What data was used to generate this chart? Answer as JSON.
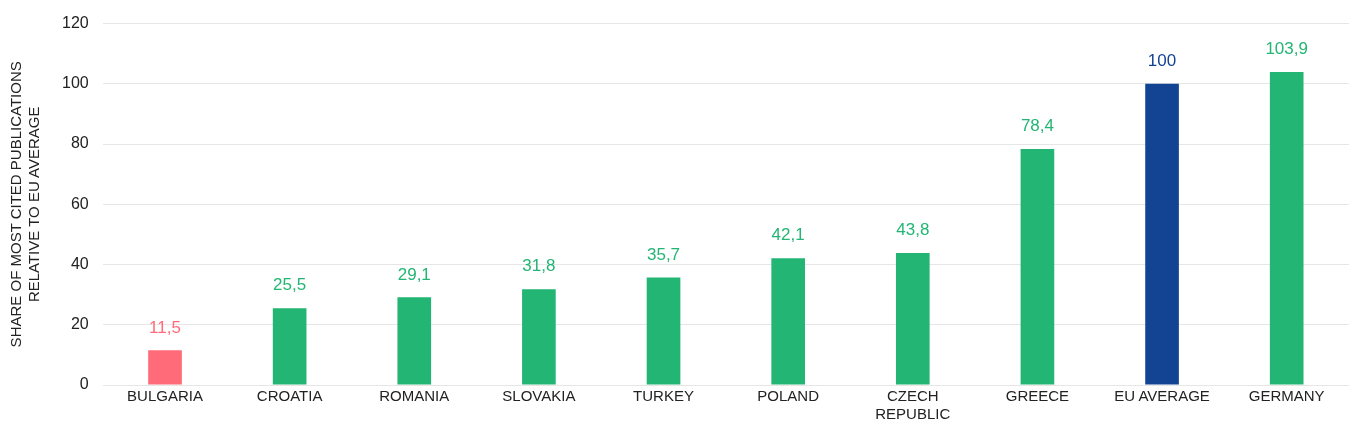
{
  "chart_data": {
    "type": "bar",
    "ylabel": "SHARE OF MOST CITED PUBLICATIONS\nRELATIVE TO EU AVERAGE",
    "categories": [
      "BULGARIA",
      "CROATIA",
      "ROMANIA",
      "SLOVAKIA",
      "TURKEY",
      "POLAND",
      "CZECH REPUBLIC",
      "GREECE",
      "EU AVERAGE",
      "GERMANY"
    ],
    "values": [
      11.5,
      25.5,
      29.1,
      31.8,
      35.7,
      42.1,
      43.8,
      78.4,
      100,
      103.9
    ],
    "colors": [
      "#ff6b78",
      "#22b573",
      "#22b573",
      "#22b573",
      "#22b573",
      "#22b573",
      "#22b573",
      "#22b573",
      "#134494",
      "#22b573"
    ],
    "value_labels": [
      "11,5",
      "25,5",
      "29,1",
      "31,8",
      "35,7",
      "42,1",
      "43,8",
      "78,4",
      "100",
      "103,9"
    ],
    "ylim": [
      0,
      120
    ],
    "yticks": [
      0,
      20,
      40,
      60,
      80,
      100,
      120
    ],
    "grid": "y",
    "legend": false
  }
}
